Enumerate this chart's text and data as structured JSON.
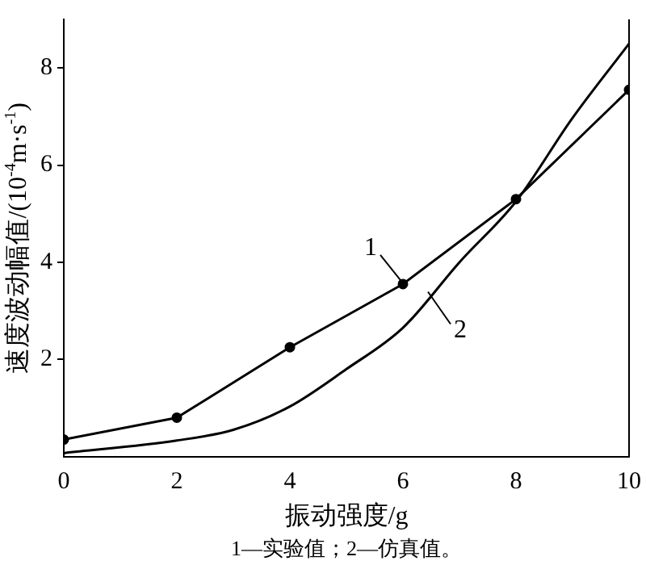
{
  "chart_data": {
    "type": "line",
    "xlabel": "振动强度/g",
    "ylabel": "速度波动幅值/(10$^{-4}$m·s$^{-1}$)",
    "annotations": [
      "1—实验值；2—仿真值。"
    ],
    "xlim": [
      0,
      10
    ],
    "xticks": [
      0,
      2,
      4,
      6,
      8,
      10
    ],
    "ylim": [
      0,
      9
    ],
    "yticks": [
      2,
      4,
      6,
      8
    ],
    "grid": false,
    "series": [
      {
        "name": "1",
        "color": "#000000",
        "marker": "circle",
        "x": [
          0,
          2,
          4,
          6,
          8,
          10
        ],
        "values": [
          0.35,
          0.8,
          2.25,
          3.55,
          5.3,
          7.55
        ]
      },
      {
        "name": "2",
        "color": "#000000",
        "marker": "none",
        "x": [
          0,
          2,
          3,
          4,
          5,
          6,
          7,
          8,
          9,
          10
        ],
        "values": [
          0.07,
          0.33,
          0.55,
          1.03,
          1.8,
          2.65,
          4.0,
          5.25,
          6.97,
          8.5
        ]
      }
    ]
  }
}
